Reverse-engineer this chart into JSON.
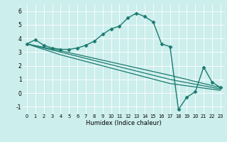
{
  "xlabel": "Humidex (Indice chaleur)",
  "xlim": [
    -0.5,
    23.5
  ],
  "ylim": [
    -1.5,
    6.5
  ],
  "xticks": [
    0,
    1,
    2,
    3,
    4,
    5,
    6,
    7,
    8,
    9,
    10,
    11,
    12,
    13,
    14,
    15,
    16,
    17,
    18,
    19,
    20,
    21,
    22,
    23
  ],
  "yticks": [
    -1,
    0,
    1,
    2,
    3,
    4,
    5,
    6
  ],
  "bg_color": "#cceeed",
  "line_color": "#1a7a6e",
  "curves": [
    {
      "x": [
        0,
        1,
        2,
        3,
        4,
        5,
        6,
        7,
        8,
        9,
        10,
        11,
        12,
        13,
        14,
        15,
        16,
        17,
        18,
        19,
        20,
        21,
        22,
        23
      ],
      "y": [
        3.6,
        3.9,
        3.5,
        3.3,
        3.2,
        3.2,
        3.3,
        3.5,
        3.8,
        4.3,
        4.7,
        4.9,
        5.5,
        5.85,
        5.6,
        5.2,
        3.6,
        3.4,
        -1.2,
        -0.3,
        0.1,
        1.9,
        0.8,
        0.4
      ],
      "has_marker": true
    },
    {
      "x": [
        0,
        4,
        17,
        23
      ],
      "y": [
        3.6,
        3.1,
        1.3,
        0.4
      ],
      "has_marker": false
    },
    {
      "x": [
        0,
        4,
        17,
        23
      ],
      "y": [
        3.6,
        3.0,
        1.0,
        0.3
      ],
      "has_marker": false
    },
    {
      "x": [
        0,
        4,
        17,
        23
      ],
      "y": [
        3.6,
        2.8,
        0.7,
        0.2
      ],
      "has_marker": false
    }
  ]
}
